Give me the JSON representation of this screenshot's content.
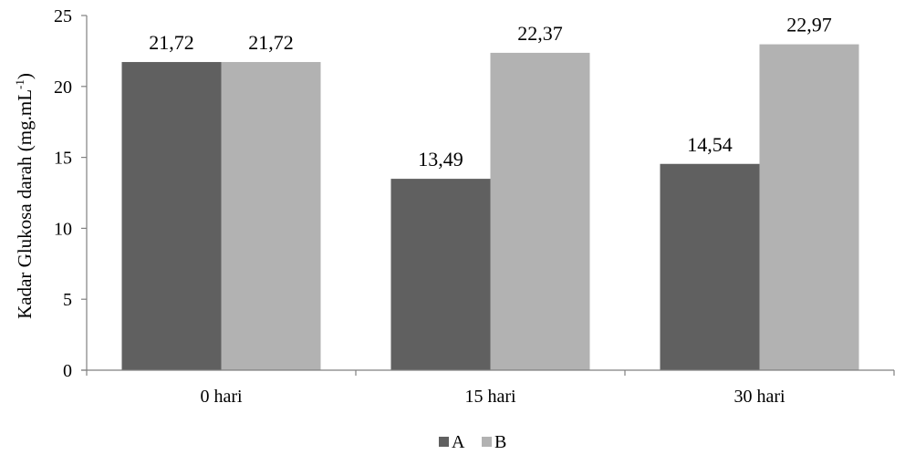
{
  "chart_data": {
    "type": "bar",
    "title": "",
    "xlabel": "",
    "ylabel": "Kadar Glukosa  darah (mg.mL",
    "ylabel_sup": "-1",
    "ylabel_suffix": ")",
    "ylim": [
      0,
      25
    ],
    "yticks": [
      0,
      5,
      10,
      15,
      20,
      25
    ],
    "categories": [
      "0 hari",
      "15 hari",
      "30 hari"
    ],
    "series": [
      {
        "name": "A",
        "color": "#606060",
        "values": [
          21.72,
          13.49,
          14.54
        ],
        "labels": [
          "21,72",
          "13,49",
          "14,54"
        ]
      },
      {
        "name": "B",
        "color": "#b2b2b2",
        "values": [
          21.72,
          22.37,
          22.97
        ],
        "labels": [
          "21,72",
          "22,37",
          "22,97"
        ]
      }
    ],
    "grid": false,
    "legend_position": "bottom"
  }
}
